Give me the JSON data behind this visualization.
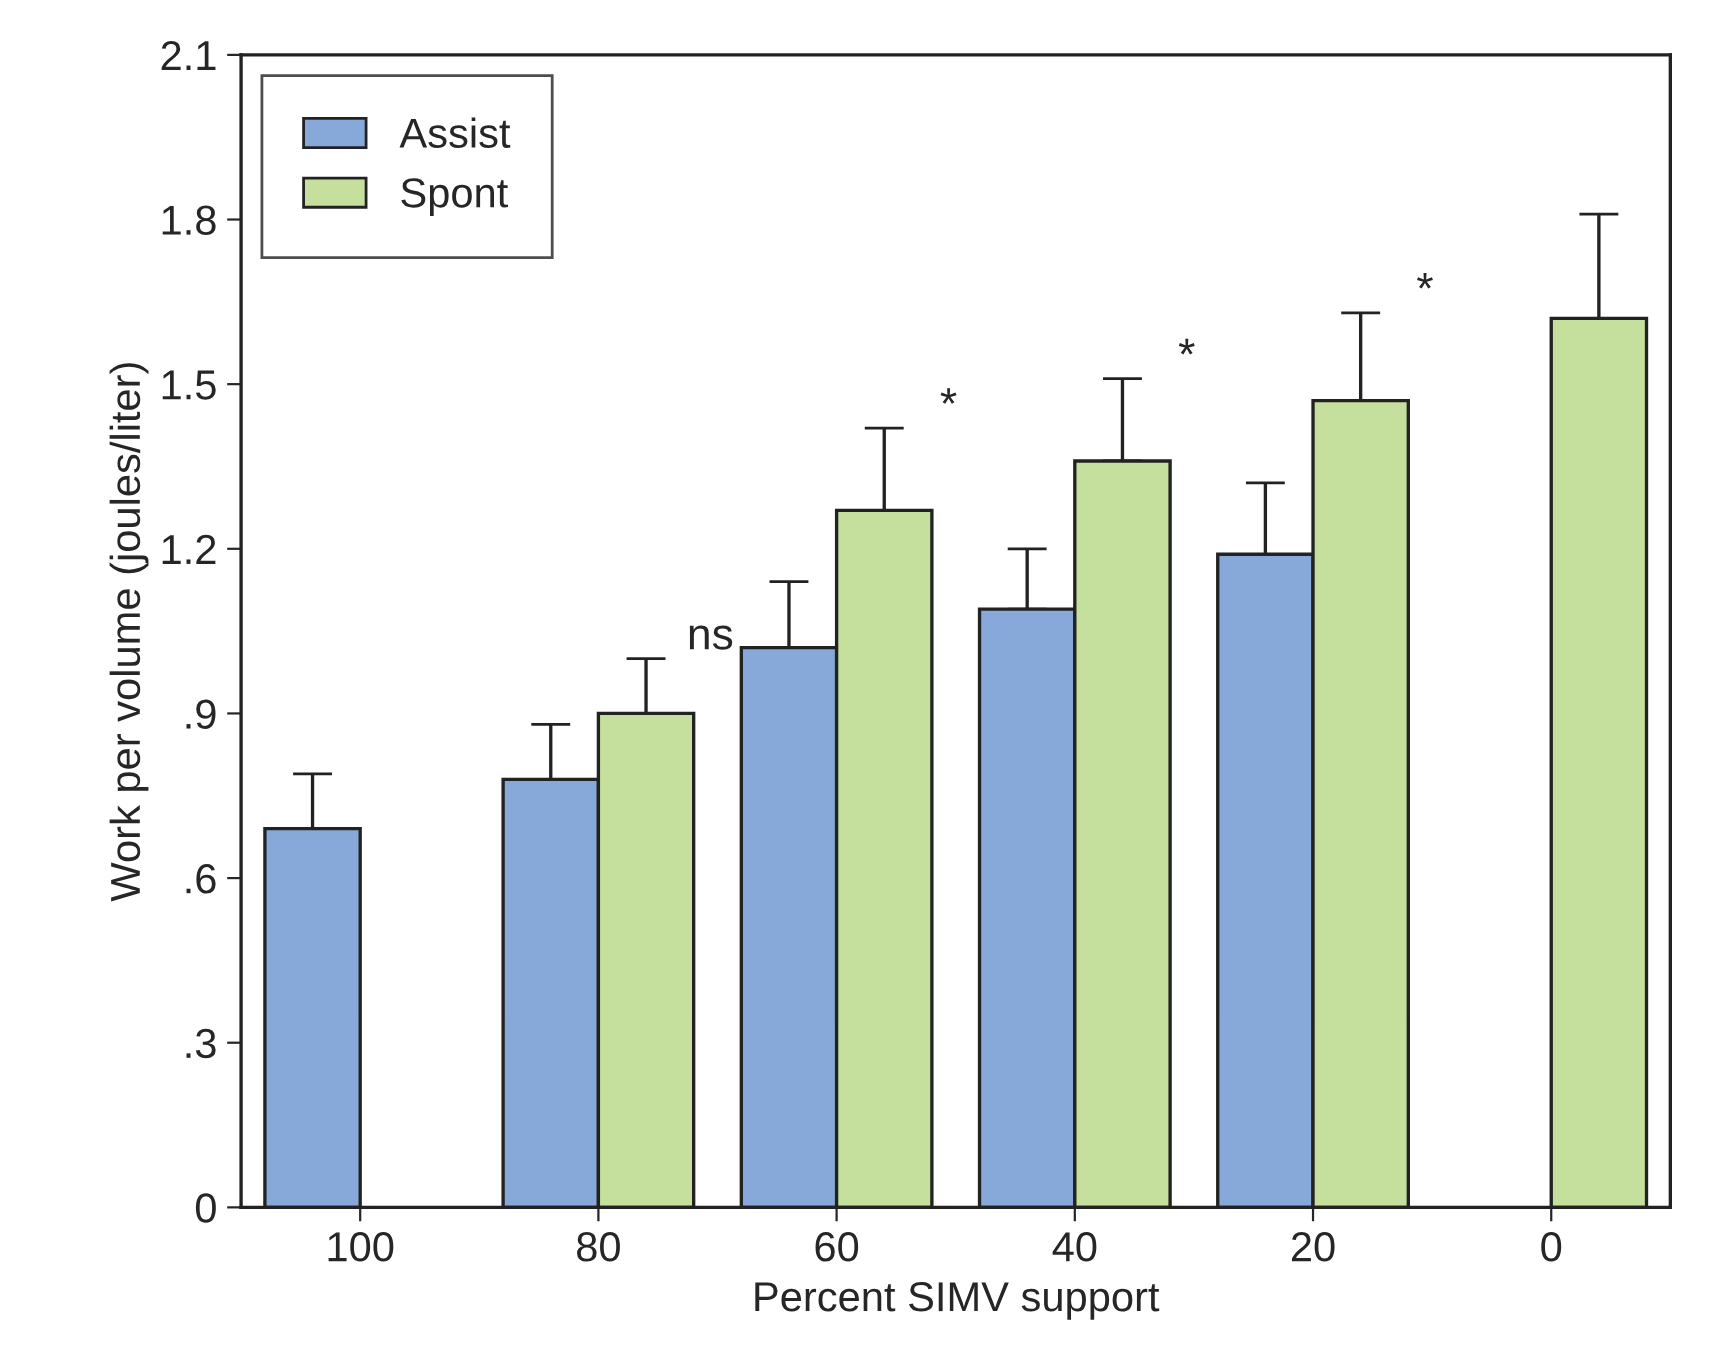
{
  "chart_data": {
    "type": "bar",
    "xlabel": "Percent SIMV support",
    "ylabel": "Work per volume (joules/liter)",
    "categories": [
      "100",
      "80",
      "60",
      "40",
      "20",
      "0"
    ],
    "series": [
      {
        "name": "Assist",
        "color": "#87a9d9",
        "values": [
          0.69,
          0.78,
          1.02,
          1.09,
          1.19,
          null
        ],
        "errors": [
          [
            0.69,
            0.79
          ],
          [
            0.78,
            0.88
          ],
          [
            1.02,
            1.14
          ],
          [
            1.09,
            1.2
          ],
          [
            1.19,
            1.32
          ],
          null
        ]
      },
      {
        "name": "Spont",
        "color": "#c4e09c",
        "values": [
          null,
          0.9,
          1.27,
          1.36,
          1.47,
          1.62
        ],
        "errors": [
          null,
          [
            0.9,
            1.0
          ],
          [
            1.27,
            1.42
          ],
          [
            1.36,
            1.51
          ],
          [
            1.47,
            1.63
          ],
          [
            1.62,
            1.81
          ]
        ]
      }
    ],
    "annotations": [
      "ns",
      "*",
      "*",
      "*"
    ],
    "ylim": [
      0,
      2.1
    ],
    "yticks": [
      0,
      {
        "value": 0.3,
        "label": ".3"
      },
      {
        "value": 0.6,
        "label": ".6"
      },
      {
        "value": 0.9,
        "label": ".9"
      },
      1.2,
      1.5,
      1.8,
      2.1
    ],
    "legend": "top left",
    "grid": false
  }
}
